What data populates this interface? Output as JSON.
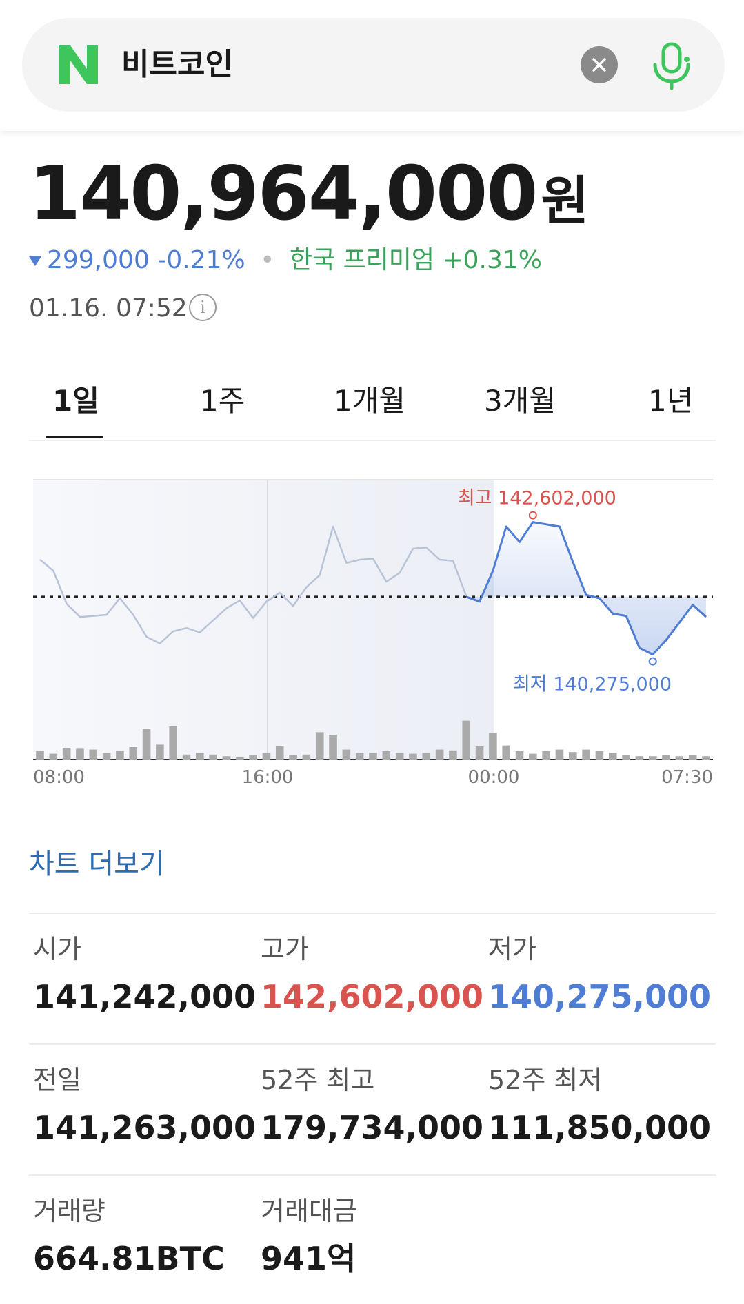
{
  "search": {
    "query": "비트코인",
    "logo_letter": "N",
    "icons": {
      "clear": "close-icon",
      "mic": "microphone-icon"
    }
  },
  "quote": {
    "price": "140,964,000",
    "unit": "원",
    "change_value": "299,000",
    "change_percent": "-0.21%",
    "premium_label": "한국 프리미엄",
    "premium_value": "+0.31%",
    "timestamp": "01.16. 07:52",
    "info_glyph": "i"
  },
  "tabs": [
    {
      "label": "1일",
      "active": true
    },
    {
      "label": "1주",
      "active": false
    },
    {
      "label": "1개월",
      "active": false
    },
    {
      "label": "3개월",
      "active": false
    },
    {
      "label": "1년",
      "active": false
    }
  ],
  "chart_data": {
    "type": "line",
    "reference_price": 141263000,
    "high_label": "최고 142,602,000",
    "low_label": "최저 140,275,000",
    "x_ticks": [
      "08:00",
      "16:00",
      "00:00",
      "07:30"
    ],
    "colors": {
      "up": "#d9534f",
      "down": "#4f7dd3",
      "history": "#b9c3d8",
      "volume": "#aaaaaa"
    },
    "price_series": [
      141600000,
      141500000,
      141200000,
      141080000,
      141090000,
      141100000,
      141250000,
      141100000,
      140900000,
      140840000,
      140950000,
      140980000,
      140940000,
      141050000,
      141160000,
      141230000,
      141070000,
      141220000,
      141300000,
      141180000,
      141350000,
      141460000,
      141900000,
      141570000,
      141600000,
      141610000,
      141400000,
      141480000,
      141700000,
      141710000,
      141600000,
      141590000,
      141270000,
      141220000,
      141500000,
      141900000,
      141760000,
      141940000,
      141920000,
      141900000,
      141580000,
      141280000,
      141250000,
      141110000,
      141090000,
      140800000,
      140740000,
      140870000,
      141030000,
      141190000,
      141080000
    ],
    "volume_series": [
      0.1,
      0.07,
      0.14,
      0.13,
      0.12,
      0.08,
      0.1,
      0.15,
      0.37,
      0.18,
      0.4,
      0.06,
      0.08,
      0.06,
      0.04,
      0.03,
      0.05,
      0.08,
      0.16,
      0.05,
      0.06,
      0.33,
      0.3,
      0.12,
      0.08,
      0.08,
      0.1,
      0.08,
      0.07,
      0.08,
      0.12,
      0.11,
      0.47,
      0.16,
      0.32,
      0.17,
      0.1,
      0.07,
      0.1,
      0.12,
      0.09,
      0.12,
      0.1,
      0.08,
      0.05,
      0.04,
      0.04,
      0.05,
      0.04,
      0.05,
      0.04
    ]
  },
  "more_link": "차트 더보기",
  "stats": [
    [
      {
        "label": "시가",
        "value": "141,242,000",
        "tone": "normal"
      },
      {
        "label": "고가",
        "value": "142,602,000",
        "tone": "red"
      },
      {
        "label": "저가",
        "value": "140,275,000",
        "tone": "blue"
      }
    ],
    [
      {
        "label": "전일",
        "value": "141,263,000",
        "tone": "normal"
      },
      {
        "label": "52주 최고",
        "value": "179,734,000",
        "tone": "normal"
      },
      {
        "label": "52주 최저",
        "value": "111,850,000",
        "tone": "normal"
      }
    ],
    [
      {
        "label": "거래량",
        "value": "664.81BTC",
        "tone": "normal"
      },
      {
        "label": "거래대금",
        "value": "941억",
        "tone": "normal"
      }
    ]
  ]
}
